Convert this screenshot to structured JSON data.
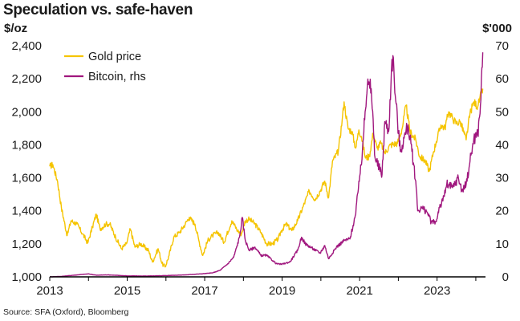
{
  "chart_data": {
    "type": "line",
    "title": "Speculation vs. safe-haven",
    "left_unit": "$/oz",
    "right_unit": "$'000",
    "source": "Source: SFA (Oxford), Bloomberg",
    "x_range": [
      2013,
      2024.25
    ],
    "x_ticks": [
      2013,
      2015,
      2017,
      2019,
      2021,
      2023
    ],
    "y_left": {
      "range": [
        1000,
        2400
      ],
      "ticks": [
        1000,
        1200,
        1400,
        1600,
        1800,
        2000,
        2200,
        2400
      ],
      "tick_labels": [
        "1,000",
        "1,200",
        "1,400",
        "1,600",
        "1,800",
        "2,000",
        "2,200",
        "2,400"
      ]
    },
    "y_right": {
      "range": [
        0,
        70
      ],
      "ticks": [
        0,
        10,
        20,
        30,
        40,
        50,
        60,
        70
      ],
      "tick_labels": [
        "0",
        "10",
        "20",
        "30",
        "40",
        "50",
        "60",
        "70"
      ]
    },
    "legend": {
      "position": "top-left"
    },
    "series": [
      {
        "name": "Gold price",
        "axis": "left",
        "color": "#F5C400",
        "points": [
          [
            2013.0,
            1670
          ],
          [
            2013.08,
            1680
          ],
          [
            2013.2,
            1580
          ],
          [
            2013.3,
            1420
          ],
          [
            2013.45,
            1250
          ],
          [
            2013.55,
            1340
          ],
          [
            2013.7,
            1320
          ],
          [
            2013.85,
            1260
          ],
          [
            2013.98,
            1205
          ],
          [
            2014.1,
            1300
          ],
          [
            2014.2,
            1380
          ],
          [
            2014.3,
            1290
          ],
          [
            2014.45,
            1320
          ],
          [
            2014.55,
            1320
          ],
          [
            2014.7,
            1240
          ],
          [
            2014.85,
            1170
          ],
          [
            2014.98,
            1200
          ],
          [
            2015.08,
            1290
          ],
          [
            2015.2,
            1180
          ],
          [
            2015.35,
            1200
          ],
          [
            2015.55,
            1160
          ],
          [
            2015.65,
            1090
          ],
          [
            2015.8,
            1170
          ],
          [
            2015.9,
            1080
          ],
          [
            2015.98,
            1060
          ],
          [
            2016.08,
            1130
          ],
          [
            2016.2,
            1240
          ],
          [
            2016.35,
            1270
          ],
          [
            2016.5,
            1320
          ],
          [
            2016.6,
            1360
          ],
          [
            2016.75,
            1320
          ],
          [
            2016.85,
            1220
          ],
          [
            2016.95,
            1130
          ],
          [
            2017.08,
            1220
          ],
          [
            2017.2,
            1250
          ],
          [
            2017.35,
            1270
          ],
          [
            2017.5,
            1210
          ],
          [
            2017.7,
            1340
          ],
          [
            2017.85,
            1280
          ],
          [
            2017.95,
            1260
          ],
          [
            2018.05,
            1340
          ],
          [
            2018.15,
            1350
          ],
          [
            2018.3,
            1320
          ],
          [
            2018.45,
            1270
          ],
          [
            2018.6,
            1200
          ],
          [
            2018.75,
            1200
          ],
          [
            2018.9,
            1230
          ],
          [
            2018.98,
            1280
          ],
          [
            2019.1,
            1320
          ],
          [
            2019.25,
            1280
          ],
          [
            2019.4,
            1340
          ],
          [
            2019.55,
            1430
          ],
          [
            2019.7,
            1520
          ],
          [
            2019.85,
            1470
          ],
          [
            2019.98,
            1520
          ],
          [
            2020.1,
            1580
          ],
          [
            2020.2,
            1480
          ],
          [
            2020.3,
            1700
          ],
          [
            2020.45,
            1760
          ],
          [
            2020.55,
            1950
          ],
          [
            2020.6,
            2060
          ],
          [
            2020.7,
            1900
          ],
          [
            2020.8,
            1880
          ],
          [
            2020.9,
            1780
          ],
          [
            2020.98,
            1890
          ],
          [
            2021.05,
            1850
          ],
          [
            2021.15,
            1720
          ],
          [
            2021.25,
            1730
          ],
          [
            2021.35,
            1870
          ],
          [
            2021.45,
            1780
          ],
          [
            2021.55,
            1810
          ],
          [
            2021.65,
            1750
          ],
          [
            2021.8,
            1800
          ],
          [
            2021.98,
            1810
          ],
          [
            2022.1,
            1900
          ],
          [
            2022.2,
            2040
          ],
          [
            2022.3,
            1880
          ],
          [
            2022.45,
            1830
          ],
          [
            2022.55,
            1730
          ],
          [
            2022.7,
            1700
          ],
          [
            2022.8,
            1640
          ],
          [
            2022.9,
            1750
          ],
          [
            2022.98,
            1820
          ],
          [
            2023.1,
            1920
          ],
          [
            2023.2,
            1900
          ],
          [
            2023.3,
            2000
          ],
          [
            2023.4,
            1960
          ],
          [
            2023.5,
            1930
          ],
          [
            2023.6,
            1940
          ],
          [
            2023.75,
            1830
          ],
          [
            2023.85,
            1990
          ],
          [
            2023.95,
            2060
          ],
          [
            2024.05,
            2030
          ],
          [
            2024.1,
            2080
          ],
          [
            2024.18,
            2140
          ]
        ]
      },
      {
        "name": "Bitcoin, rhs",
        "axis": "right",
        "color": "#A0177E",
        "points": [
          [
            2013.0,
            0.01
          ],
          [
            2013.3,
            0.15
          ],
          [
            2013.9,
            0.8
          ],
          [
            2014.0,
            0.9
          ],
          [
            2014.2,
            0.5
          ],
          [
            2014.5,
            0.6
          ],
          [
            2015.0,
            0.3
          ],
          [
            2015.5,
            0.25
          ],
          [
            2016.0,
            0.4
          ],
          [
            2016.5,
            0.6
          ],
          [
            2016.9,
            0.9
          ],
          [
            2017.2,
            1.2
          ],
          [
            2017.4,
            2.0
          ],
          [
            2017.6,
            4.0
          ],
          [
            2017.75,
            6.0
          ],
          [
            2017.9,
            12.0
          ],
          [
            2017.97,
            18.0
          ],
          [
            2018.05,
            11.0
          ],
          [
            2018.15,
            8.0
          ],
          [
            2018.3,
            9.0
          ],
          [
            2018.45,
            6.5
          ],
          [
            2018.6,
            6.5
          ],
          [
            2018.85,
            4.0
          ],
          [
            2018.98,
            3.8
          ],
          [
            2019.2,
            4.5
          ],
          [
            2019.4,
            8.0
          ],
          [
            2019.5,
            12.0
          ],
          [
            2019.6,
            10.0
          ],
          [
            2019.8,
            8.5
          ],
          [
            2019.98,
            7.2
          ],
          [
            2020.1,
            9.5
          ],
          [
            2020.2,
            5.5
          ],
          [
            2020.4,
            9.0
          ],
          [
            2020.6,
            11.0
          ],
          [
            2020.75,
            11.5
          ],
          [
            2020.9,
            19.0
          ],
          [
            2020.98,
            29.0
          ],
          [
            2021.05,
            34.0
          ],
          [
            2021.12,
            48.0
          ],
          [
            2021.2,
            58.0
          ],
          [
            2021.3,
            57.0
          ],
          [
            2021.4,
            36.0
          ],
          [
            2021.5,
            33.0
          ],
          [
            2021.58,
            31.0
          ],
          [
            2021.65,
            47.0
          ],
          [
            2021.75,
            44.0
          ],
          [
            2021.82,
            62.0
          ],
          [
            2021.86,
            67.0
          ],
          [
            2021.92,
            55.0
          ],
          [
            2021.98,
            47.0
          ],
          [
            2022.05,
            38.0
          ],
          [
            2022.15,
            42.0
          ],
          [
            2022.25,
            46.0
          ],
          [
            2022.35,
            38.0
          ],
          [
            2022.45,
            29.0
          ],
          [
            2022.5,
            20.0
          ],
          [
            2022.6,
            21.0
          ],
          [
            2022.75,
            19.5
          ],
          [
            2022.85,
            16.5
          ],
          [
            2022.98,
            16.7
          ],
          [
            2023.05,
            21.0
          ],
          [
            2023.15,
            23.0
          ],
          [
            2023.25,
            28.0
          ],
          [
            2023.4,
            27.0
          ],
          [
            2023.55,
            30.0
          ],
          [
            2023.65,
            26.0
          ],
          [
            2023.75,
            28.0
          ],
          [
            2023.85,
            35.0
          ],
          [
            2023.95,
            42.0
          ],
          [
            2024.05,
            43.0
          ],
          [
            2024.12,
            52.0
          ],
          [
            2024.18,
            68.0
          ]
        ]
      }
    ]
  }
}
